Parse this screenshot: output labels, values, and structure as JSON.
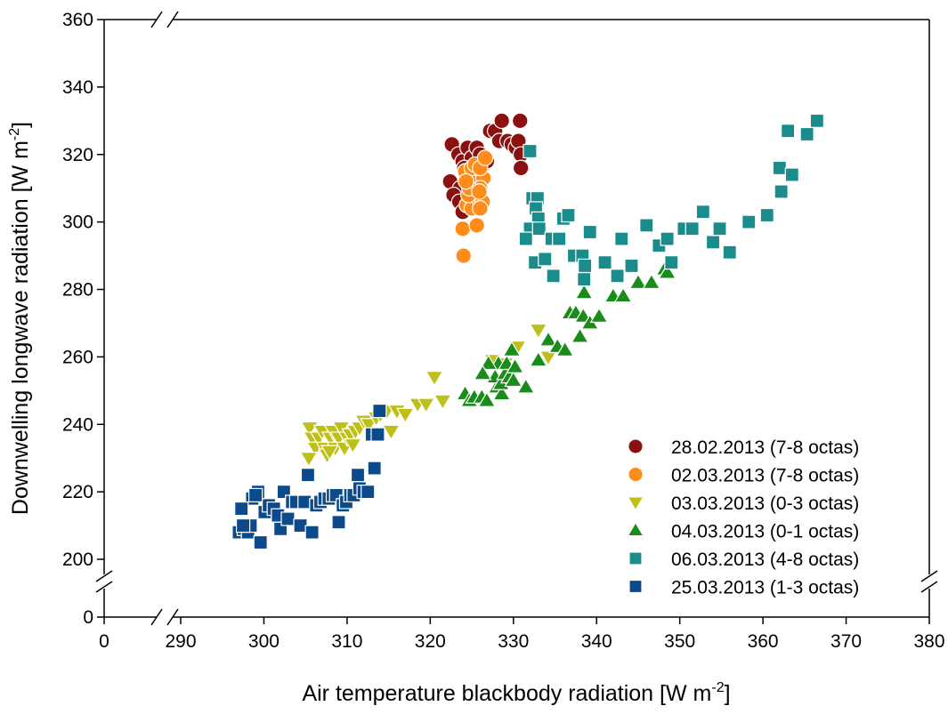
{
  "chart_data": {
    "type": "scatter",
    "xlabel": "Air temperature blackbody radiation [W m",
    "xlabel_sup": "-2",
    "xlabel_end": "]",
    "ylabel": "Downwelling longwave radiation [W m",
    "ylabel_sup": "-2",
    "ylabel_end": "]",
    "x_axis_break": {
      "low_tick": 0,
      "resume_at": 290
    },
    "y_axis_break": {
      "low_tick": 0,
      "resume_at": 200
    },
    "xlim": [
      290,
      380
    ],
    "ylim": [
      200,
      360
    ],
    "x_ticks": [
      "0",
      "290",
      "300",
      "310",
      "320",
      "330",
      "340",
      "350",
      "360",
      "370",
      "380"
    ],
    "y_ticks": [
      "0",
      "200",
      "220",
      "240",
      "260",
      "280",
      "300",
      "320",
      "340",
      "360"
    ],
    "grid": false,
    "legend_position": "bottom-right",
    "series": [
      {
        "name": "28.02.2013 (7-8 octas)",
        "marker": "circle",
        "color": "#8b1010",
        "points": [
          [
            322.6,
            323
          ],
          [
            323.4,
            320
          ],
          [
            323.9,
            318
          ],
          [
            322.4,
            312
          ],
          [
            323.6,
            310
          ],
          [
            322.8,
            308
          ],
          [
            323.5,
            306
          ],
          [
            323.9,
            303
          ],
          [
            324.5,
            322
          ],
          [
            325.0,
            319
          ],
          [
            325.6,
            322
          ],
          [
            326.0,
            320
          ],
          [
            326.4,
            317
          ],
          [
            325.1,
            315
          ],
          [
            326.8,
            318
          ],
          [
            327.2,
            327
          ],
          [
            327.8,
            327
          ],
          [
            328.6,
            330
          ],
          [
            328.3,
            324
          ],
          [
            329.3,
            324
          ],
          [
            329.8,
            323
          ],
          [
            330.3,
            322
          ],
          [
            330.8,
            330
          ],
          [
            330.6,
            324
          ],
          [
            330.9,
            320
          ],
          [
            330.9,
            316
          ],
          [
            324.9,
            313
          ],
          [
            325.5,
            311
          ],
          [
            326.2,
            313
          ],
          [
            324.1,
            316
          ]
        ]
      },
      {
        "name": "02.03.2013 (7-8 octas)",
        "marker": "circle",
        "color": "#ff8c1a",
        "points": [
          [
            324.0,
            290
          ],
          [
            323.9,
            298
          ],
          [
            325.6,
            299
          ],
          [
            324.4,
            305
          ],
          [
            325.0,
            304
          ],
          [
            325.8,
            307
          ],
          [
            326.3,
            306
          ],
          [
            326.0,
            304
          ],
          [
            324.6,
            308
          ],
          [
            325.2,
            311
          ],
          [
            324.8,
            313
          ],
          [
            325.6,
            313
          ],
          [
            326.4,
            313
          ],
          [
            324.2,
            315
          ],
          [
            325.0,
            316
          ],
          [
            325.4,
            317
          ],
          [
            326.0,
            316
          ],
          [
            326.6,
            319
          ],
          [
            326.0,
            310
          ],
          [
            324.7,
            310
          ],
          [
            325.9,
            309
          ],
          [
            324.3,
            312
          ]
        ]
      },
      {
        "name": "03.03.2013 (0-3 octas)",
        "marker": "triangle-down",
        "color": "#bfbf1a",
        "points": [
          [
            305.5,
            239
          ],
          [
            305.8,
            236
          ],
          [
            306.2,
            233
          ],
          [
            306.6,
            236
          ],
          [
            307.0,
            238
          ],
          [
            307.3,
            233
          ],
          [
            307.6,
            231
          ],
          [
            308.0,
            236
          ],
          [
            308.3,
            238
          ],
          [
            308.6,
            233
          ],
          [
            309.0,
            236
          ],
          [
            309.3,
            239
          ],
          [
            309.7,
            233
          ],
          [
            310.0,
            236
          ],
          [
            310.4,
            237
          ],
          [
            311.0,
            238
          ],
          [
            311.5,
            239
          ],
          [
            312.0,
            241
          ],
          [
            312.6,
            240
          ],
          [
            313.5,
            242
          ],
          [
            314.0,
            243
          ],
          [
            314.8,
            244
          ],
          [
            315.3,
            238
          ],
          [
            316.0,
            244
          ],
          [
            317.0,
            243
          ],
          [
            318.5,
            246
          ],
          [
            319.5,
            246
          ],
          [
            320.5,
            254
          ],
          [
            321.5,
            247
          ],
          [
            305.4,
            230
          ],
          [
            307.9,
            232
          ],
          [
            310.7,
            234
          ],
          [
            327.5,
            259
          ],
          [
            329.0,
            258
          ],
          [
            330.5,
            263
          ],
          [
            333.0,
            268
          ],
          [
            334.2,
            260
          ]
        ]
      },
      {
        "name": "04.03.2013 (0-1 octas)",
        "marker": "triangle-up",
        "color": "#1a8c1a",
        "points": [
          [
            324.2,
            249
          ],
          [
            324.7,
            247
          ],
          [
            325.3,
            248
          ],
          [
            326.2,
            248
          ],
          [
            326.8,
            247
          ],
          [
            328.0,
            251
          ],
          [
            328.6,
            249
          ],
          [
            327.8,
            254
          ],
          [
            328.5,
            252
          ],
          [
            329.0,
            255
          ],
          [
            329.5,
            254
          ],
          [
            330.0,
            253
          ],
          [
            328.2,
            258
          ],
          [
            329.2,
            258
          ],
          [
            329.8,
            262
          ],
          [
            327.0,
            258
          ],
          [
            330.2,
            257
          ],
          [
            331.5,
            251
          ],
          [
            333.0,
            259
          ],
          [
            334.2,
            265
          ],
          [
            335.3,
            263
          ],
          [
            336.2,
            262
          ],
          [
            336.8,
            273
          ],
          [
            337.5,
            273
          ],
          [
            338.4,
            272
          ],
          [
            338.0,
            266
          ],
          [
            338.5,
            279
          ],
          [
            339.2,
            270
          ],
          [
            340.3,
            272
          ],
          [
            342.0,
            278
          ],
          [
            343.2,
            278
          ],
          [
            345.0,
            282
          ],
          [
            346.6,
            282
          ],
          [
            348.2,
            286
          ],
          [
            348.5,
            285
          ],
          [
            326.3,
            255
          ]
        ]
      },
      {
        "name": "06.03.2013 (4-8 octas)",
        "marker": "square",
        "color": "#1a8c8c",
        "points": [
          [
            332.0,
            321
          ],
          [
            332.3,
            307
          ],
          [
            332.9,
            307
          ],
          [
            332.7,
            304
          ],
          [
            333.0,
            301
          ],
          [
            332.0,
            298
          ],
          [
            333.1,
            298
          ],
          [
            331.5,
            295
          ],
          [
            332.6,
            288
          ],
          [
            333.8,
            289
          ],
          [
            334.8,
            284
          ],
          [
            334.6,
            295
          ],
          [
            335.5,
            295
          ],
          [
            336.0,
            301
          ],
          [
            336.6,
            302
          ],
          [
            337.3,
            290
          ],
          [
            338.3,
            290
          ],
          [
            338.6,
            287
          ],
          [
            338.5,
            283
          ],
          [
            339.2,
            297
          ],
          [
            341.0,
            288
          ],
          [
            342.5,
            284
          ],
          [
            343.0,
            295
          ],
          [
            344.2,
            287
          ],
          [
            346.0,
            299
          ],
          [
            347.5,
            293
          ],
          [
            348.5,
            295
          ],
          [
            349.0,
            288
          ],
          [
            350.5,
            298
          ],
          [
            351.5,
            298
          ],
          [
            352.8,
            303
          ],
          [
            354.0,
            294
          ],
          [
            354.8,
            298
          ],
          [
            356.0,
            291
          ],
          [
            358.3,
            300
          ],
          [
            360.5,
            302
          ],
          [
            362.0,
            316
          ],
          [
            362.2,
            309
          ],
          [
            363.0,
            327
          ],
          [
            363.5,
            314
          ],
          [
            365.3,
            326
          ],
          [
            366.5,
            330
          ]
        ]
      },
      {
        "name": "25.03.2013 (1-3 octas)",
        "marker": "square",
        "color": "#0d4a8c",
        "points": [
          [
            297.0,
            208
          ],
          [
            297.6,
            209
          ],
          [
            298.1,
            208
          ],
          [
            298.4,
            210
          ],
          [
            298.6,
            218
          ],
          [
            299.3,
            220
          ],
          [
            297.3,
            215
          ],
          [
            299.6,
            205
          ],
          [
            300.1,
            214
          ],
          [
            300.6,
            216
          ],
          [
            301.2,
            215
          ],
          [
            301.7,
            213
          ],
          [
            302.0,
            209
          ],
          [
            302.4,
            220
          ],
          [
            302.9,
            212
          ],
          [
            303.4,
            217
          ],
          [
            303.9,
            217
          ],
          [
            304.4,
            210
          ],
          [
            304.9,
            217
          ],
          [
            305.3,
            225
          ],
          [
            305.8,
            208
          ],
          [
            306.3,
            216
          ],
          [
            306.8,
            217
          ],
          [
            307.3,
            218
          ],
          [
            307.8,
            218
          ],
          [
            308.3,
            219
          ],
          [
            308.7,
            219
          ],
          [
            309.0,
            211
          ],
          [
            309.5,
            216
          ],
          [
            309.9,
            217
          ],
          [
            310.4,
            219
          ],
          [
            310.8,
            219
          ],
          [
            311.3,
            225
          ],
          [
            311.5,
            221
          ],
          [
            312.0,
            220
          ],
          [
            312.5,
            220
          ],
          [
            313.0,
            237
          ],
          [
            313.3,
            227
          ],
          [
            313.7,
            237
          ],
          [
            313.9,
            244
          ],
          [
            297.5,
            210
          ],
          [
            299.0,
            219
          ]
        ]
      }
    ]
  }
}
